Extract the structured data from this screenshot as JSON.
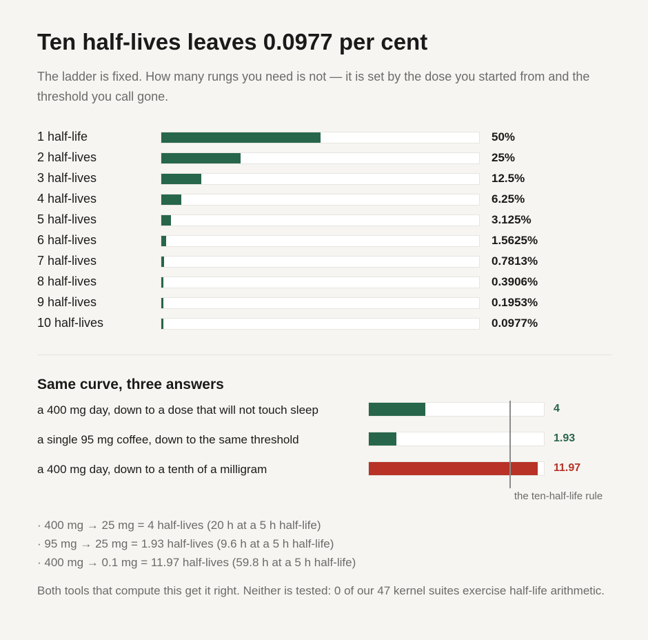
{
  "title": "Ten half-lives leaves 0.0977 per cent",
  "subtitle": "The ladder is fixed. How many rungs you need is not — it is set by the dose you started from and the threshold you call gone.",
  "colors": {
    "green": "#27664a",
    "red": "#b83227",
    "track": "#ffffff",
    "rule": "#8a8a8a"
  },
  "chart_data": [
    {
      "type": "bar",
      "orientation": "horizontal",
      "categories": [
        "1 half-life",
        "2 half-lives",
        "3 half-lives",
        "4 half-lives",
        "5 half-lives",
        "6 half-lives",
        "7 half-lives",
        "8 half-lives",
        "9 half-lives",
        "10 half-lives"
      ],
      "values": [
        50,
        25,
        12.5,
        6.25,
        3.125,
        1.5625,
        0.7813,
        0.3906,
        0.1953,
        0.0977
      ],
      "value_labels": [
        "50%",
        "25%",
        "12.5%",
        "6.25%",
        "3.125%",
        "1.5625%",
        "0.7813%",
        "0.3906%",
        "0.1953%",
        "0.0977%"
      ],
      "xlim": [
        0,
        100
      ],
      "color": "#27664a"
    },
    {
      "type": "bar",
      "orientation": "horizontal",
      "title": "Same curve, three answers",
      "categories": [
        "a 400 mg day, down to a dose that will not touch sleep",
        "a single 95 mg coffee, down to the same threshold",
        "a 400 mg day, down to a tenth of a milligram"
      ],
      "values": [
        4,
        1.93,
        11.97
      ],
      "value_labels": [
        "4",
        "1.93",
        "11.97"
      ],
      "bar_colors": [
        "#27664a",
        "#27664a",
        "#b83227"
      ],
      "xlim": [
        0,
        12.4
      ],
      "reference_line": {
        "value": 10,
        "label": "the ten-half-life rule"
      }
    }
  ],
  "notes": [
    "· 400 mg → 25 mg = 4 half-lives (20 h at a 5 h half-life)",
    "· 95 mg → 25 mg = 1.93 half-lives (9.6 h at a 5 h half-life)",
    "· 400 mg → 0.1 mg = 11.97 half-lives (59.8 h at a 5 h half-life)"
  ],
  "footnote": "Both tools that compute this get it right. Neither is tested: 0 of our 47 kernel suites exercise half-life arithmetic."
}
